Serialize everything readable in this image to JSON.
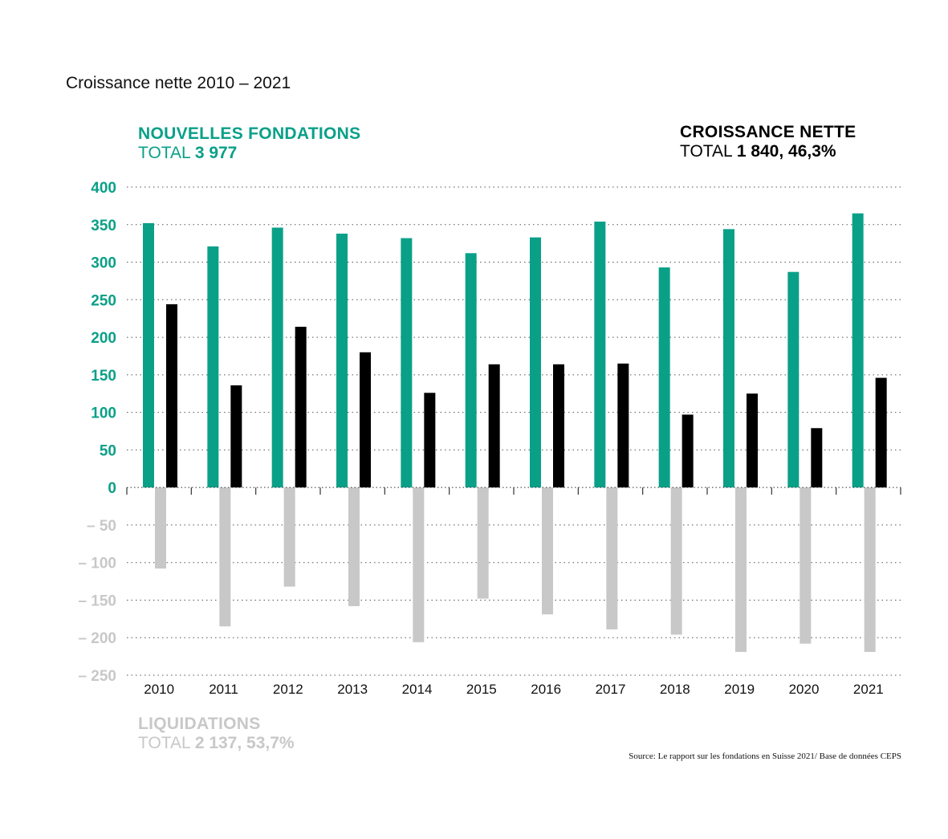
{
  "title": "Croissance nette 2010 – 2021",
  "legend": {
    "new": {
      "label": "NOUVELLES FONDATIONS",
      "total_prefix": "TOTAL",
      "total_value": "3 977",
      "total_suffix": ""
    },
    "net": {
      "label": "CROISSANCE NETTE",
      "total_prefix": "TOTAL",
      "total_value": "1 840",
      "total_suffix": ", 46,3%"
    },
    "liq": {
      "label": "LIQUIDATIONS",
      "total_prefix": "TOTAL",
      "total_value": "2 137",
      "total_suffix": ", 53,7%"
    }
  },
  "source": "Source: Le rapport sur les fondations en Suisse 2021/ Base de données CEPS",
  "colors": {
    "new": "#0aa088",
    "net": "#000000",
    "liq": "#c8c8c8",
    "axis_pos": "#0aa088",
    "axis_neg": "#c8c8c8",
    "axis_zero": "#0aa088"
  },
  "chart_data": {
    "type": "bar",
    "categories": [
      "2010",
      "2011",
      "2012",
      "2013",
      "2014",
      "2015",
      "2016",
      "2017",
      "2018",
      "2019",
      "2020",
      "2021"
    ],
    "series": [
      {
        "name": "NOUVELLES FONDATIONS",
        "values": [
          352,
          321,
          346,
          338,
          332,
          312,
          333,
          354,
          293,
          344,
          287,
          365
        ]
      },
      {
        "name": "CROISSANCE NETTE",
        "values": [
          244,
          136,
          214,
          180,
          126,
          164,
          164,
          165,
          97,
          125,
          79,
          146
        ]
      },
      {
        "name": "LIQUIDATIONS",
        "values": [
          -108,
          -185,
          -132,
          -158,
          -206,
          -148,
          -169,
          -189,
          -196,
          -219,
          -208,
          -219
        ]
      }
    ],
    "ylim": [
      -250,
      400
    ],
    "yticks": [
      400,
      350,
      300,
      250,
      200,
      150,
      100,
      50,
      0,
      -50,
      -100,
      -150,
      -200,
      -250
    ],
    "ytick_labels": [
      "400",
      "350",
      "300",
      "250",
      "200",
      "150",
      "100",
      "50",
      "0",
      "– 50",
      "– 100",
      "– 150",
      "– 200",
      "– 250"
    ],
    "grid": true,
    "legend_position": "top"
  }
}
